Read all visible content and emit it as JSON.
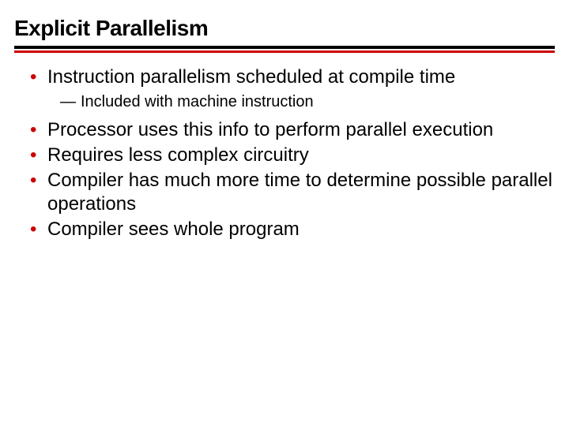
{
  "slide": {
    "title": "Explicit Parallelism",
    "rule_thick_color": "#000000",
    "rule_thin_color": "#cc0000",
    "bullet_color": "#cc0000",
    "background_color": "#ffffff",
    "text_color": "#000000",
    "title_fontsize": 28,
    "body_fontsize": 24,
    "sub_fontsize": 20,
    "bullets": [
      {
        "text": "Instruction parallelism scheduled at compile time",
        "sub": [
          "Included with machine instruction"
        ]
      },
      {
        "text": "Processor uses this info to perform parallel execution"
      },
      {
        "text": "Requires less complex circuitry"
      },
      {
        "text": "Compiler has much more time to determine possible parallel operations"
      },
      {
        "text": "Compiler sees whole program"
      }
    ]
  }
}
